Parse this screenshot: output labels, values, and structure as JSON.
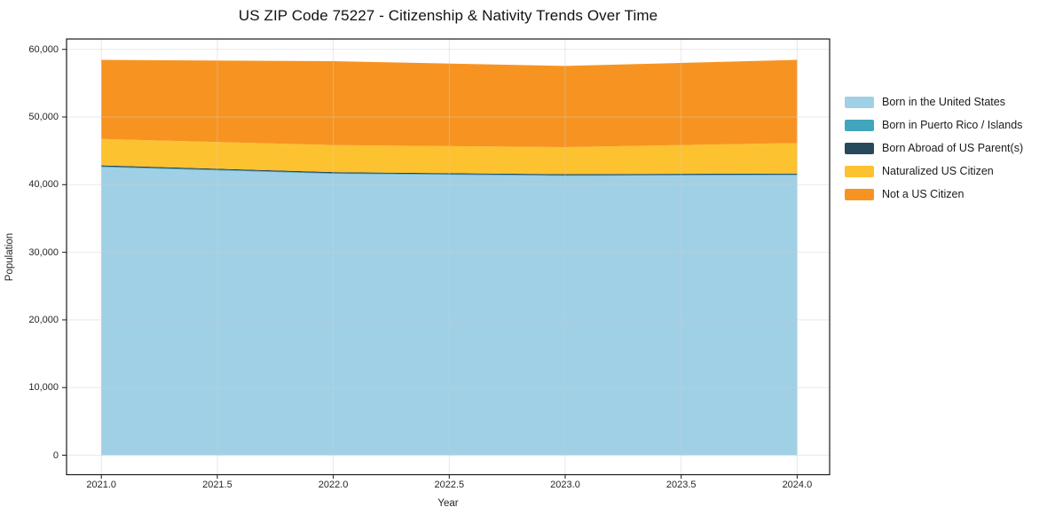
{
  "chart_data": {
    "type": "area",
    "stacked": true,
    "title": "US ZIP Code 75227 - Citizenship & Nativity Trends Over Time",
    "xlabel": "Year",
    "ylabel": "Population",
    "x": [
      2021,
      2022,
      2023,
      2024
    ],
    "series": [
      {
        "name": "Born in the United States",
        "color": "#A0D0E6",
        "values": [
          42600,
          41600,
          41300,
          41400
        ]
      },
      {
        "name": "Born in Puerto Rico / Islands",
        "color": "#41A5BD",
        "values": [
          100,
          100,
          100,
          100
        ]
      },
      {
        "name": "Born Abroad of US Parent(s)",
        "color": "#26495C",
        "values": [
          150,
          150,
          150,
          150
        ]
      },
      {
        "name": "Naturalized US Citizen",
        "color": "#FDC230",
        "values": [
          3900,
          4000,
          4000,
          4500
        ]
      },
      {
        "name": "Not a US Citizen",
        "color": "#F79421",
        "values": [
          11700,
          12400,
          12000,
          12300
        ]
      }
    ],
    "x_ticks": {
      "values": [
        2021.0,
        2021.5,
        2022.0,
        2022.5,
        2023.0,
        2023.5,
        2024.0
      ],
      "labels": [
        "2021.0",
        "2021.5",
        "2022.0",
        "2022.5",
        "2023.0",
        "2023.5",
        "2024.0"
      ]
    },
    "y_ticks": {
      "values": [
        0,
        10000,
        20000,
        30000,
        40000,
        50000,
        60000
      ],
      "labels": [
        "0",
        "10,000",
        "20,000",
        "30,000",
        "40,000",
        "50,000",
        "60,000"
      ]
    },
    "xlim": [
      2020.85,
      2024.14
    ],
    "ylim": [
      0,
      60000
    ],
    "grid": true,
    "legend_position": "right",
    "axis_color": "#1a1a1a",
    "grid_color": "#cccccc"
  }
}
